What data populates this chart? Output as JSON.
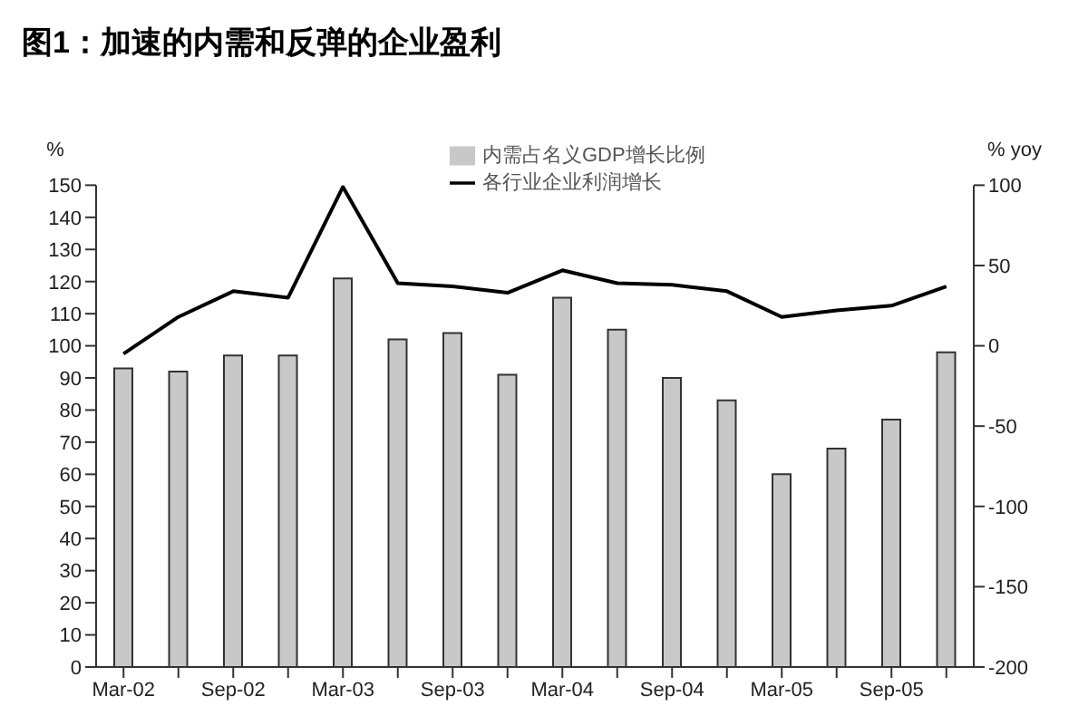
{
  "chart_data": {
    "type": "bar",
    "title": "图1：加速的内需和反弹的企业盈利",
    "ylabel": "%",
    "y2label": "% yoy",
    "categories": [
      "Mar-02",
      null,
      "Sep-02",
      null,
      "Mar-03",
      null,
      "Sep-03",
      null,
      "Mar-04",
      null,
      "Sep-04",
      null,
      "Mar-05",
      null,
      "Sep-05",
      null
    ],
    "series": [
      {
        "name": "内需占名义GDP增长比例",
        "color": "#c8c8c8",
        "values": [
          93,
          92,
          97,
          97,
          121,
          102,
          104,
          91,
          115,
          105,
          90,
          83,
          60,
          68,
          77,
          98
        ]
      },
      {
        "name": "各行业企业利润增长",
        "type": "line",
        "axis": "y2",
        "color": "#000000",
        "values": [
          -5,
          18,
          34,
          30,
          99,
          39,
          37,
          33,
          47,
          39,
          38,
          34,
          18,
          22,
          25,
          37
        ]
      }
    ],
    "ylim": [
      0,
      150
    ],
    "yticks": [
      0,
      10,
      20,
      30,
      40,
      50,
      60,
      70,
      80,
      90,
      100,
      110,
      120,
      130,
      140,
      150
    ],
    "y2lim": [
      -200,
      100
    ],
    "y2ticks": [
      -200,
      -150,
      -100,
      -50,
      0,
      50,
      100
    ],
    "legend": "top",
    "marker": "none",
    "line_style": "solid"
  }
}
